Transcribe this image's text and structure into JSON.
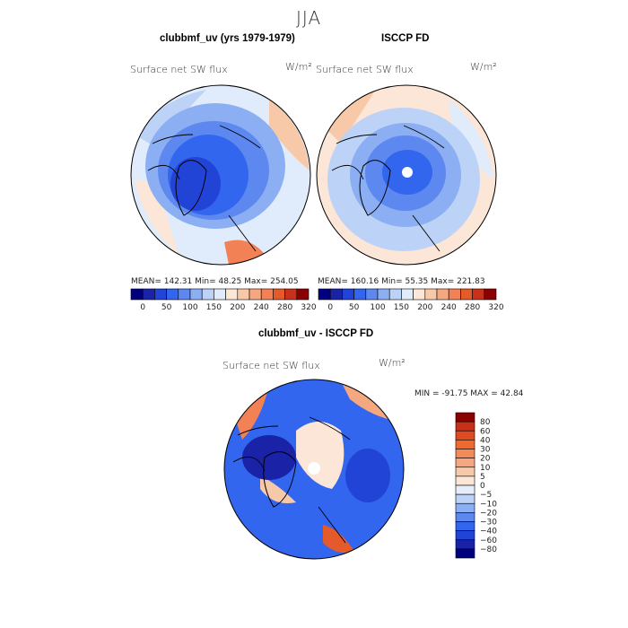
{
  "chart_data": [
    {
      "type": "heatmap",
      "season": "JJA",
      "title": "clubbmf_uv (yrs 1979-1979)",
      "variable": "Surface net SW flux",
      "units": "W/m²",
      "projection": "north-polar-stereographic",
      "stats_label": "MEAN= 142.31   Min=   48.25   Max= 254.05",
      "stats": {
        "mean": 142.31,
        "min": 48.25,
        "max": 254.05
      },
      "colorbar_levels": [
        0,
        50,
        100,
        150,
        200,
        240,
        280,
        320
      ],
      "colors": [
        "#00007f",
        "#1a22a8",
        "#2244d6",
        "#3366ee",
        "#5c88f0",
        "#8caef2",
        "#bcd2f6",
        "#e0ecfb",
        "#fbe6d8",
        "#f8c9a8",
        "#f5a880",
        "#f28256",
        "#e55a2b",
        "#c8301a",
        "#8b0000"
      ]
    },
    {
      "type": "heatmap",
      "title": "ISCCP FD",
      "variable": "Surface net SW flux",
      "units": "W/m²",
      "projection": "north-polar-stereographic",
      "stats_label": "MEAN= 160.16   Min=   55.35   Max= 221.83",
      "stats": {
        "mean": 160.16,
        "min": 55.35,
        "max": 221.83
      },
      "colorbar_levels": [
        0,
        50,
        100,
        150,
        200,
        240,
        280,
        320
      ],
      "colors": [
        "#00007f",
        "#1a22a8",
        "#2244d6",
        "#3366ee",
        "#5c88f0",
        "#8caef2",
        "#bcd2f6",
        "#e0ecfb",
        "#fbe6d8",
        "#f8c9a8",
        "#f5a880",
        "#f28256",
        "#e55a2b",
        "#c8301a",
        "#8b0000"
      ]
    },
    {
      "type": "heatmap",
      "title": "clubbmf_uv - ISCCP FD",
      "variable": "Surface net SW flux",
      "units": "W/m²",
      "projection": "north-polar-stereographic",
      "stats_label": "MIN = -91.75 MAX =  42.84",
      "stats": {
        "min": -91.75,
        "max": 42.84
      },
      "colorbar_levels": [
        80,
        60,
        40,
        30,
        20,
        10,
        5,
        0,
        -5,
        -10,
        -20,
        -30,
        -40,
        -60,
        -80
      ],
      "colors": [
        "#8b0000",
        "#c8301a",
        "#e04a20",
        "#f06a30",
        "#f28a5a",
        "#f5a880",
        "#f8c9a8",
        "#fbe6d8",
        "#e6eefc",
        "#bcd2f6",
        "#8caef2",
        "#5c88f0",
        "#3366ee",
        "#2244d6",
        "#1a22a8",
        "#00007f"
      ]
    }
  ],
  "page": {
    "season_title": "JJA"
  }
}
